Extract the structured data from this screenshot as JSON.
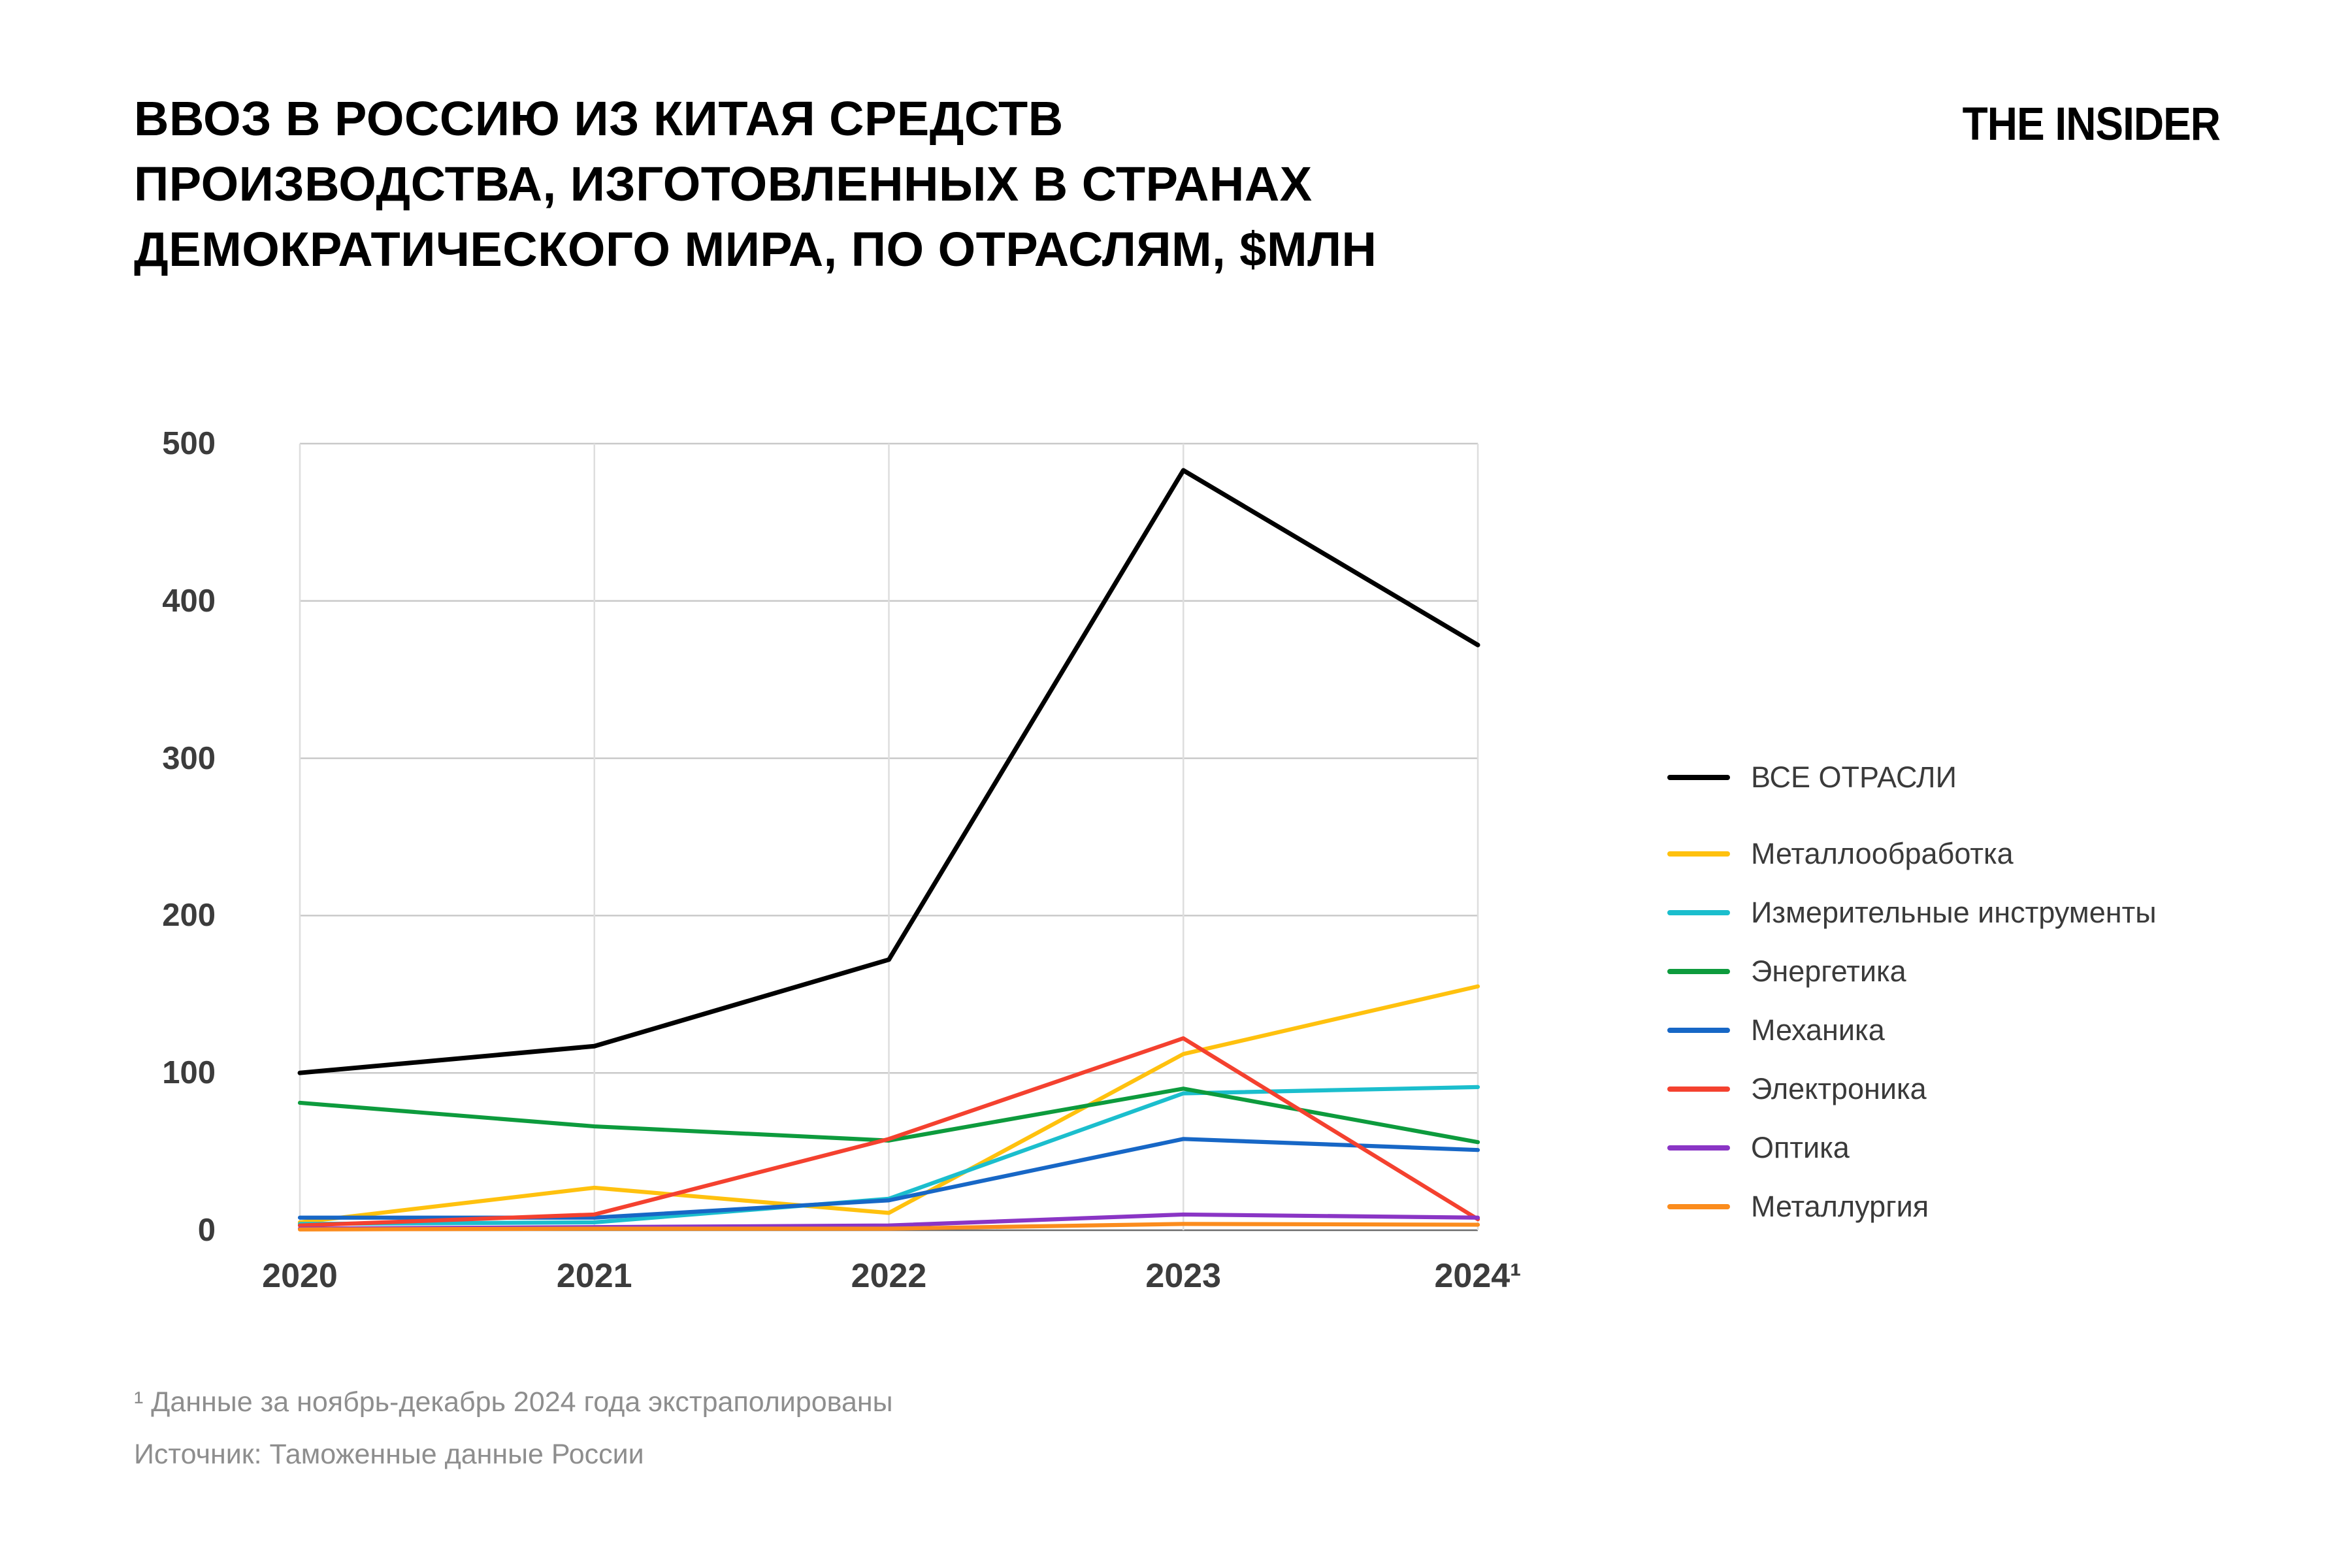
{
  "header": {
    "title_lines": [
      "ВВОЗ В РОССИЮ ИЗ КИТАЯ СРЕДСТВ",
      "ПРОИЗВОДСТВА, ИЗГОТОВЛЕННЫХ В СТРАНАХ",
      "ДЕМОКРАТИЧЕСКОГО МИРА, ПО ОТРАСЛЯМ, $МЛН"
    ],
    "logo": "THE INSIDER"
  },
  "chart_data": {
    "type": "line",
    "x": [
      2020,
      2021,
      2022,
      2023,
      2024
    ],
    "x_tick_labels": [
      "2020",
      "2021",
      "2022",
      "2023",
      "2024¹"
    ],
    "y_ticks": [
      0,
      100,
      200,
      300,
      400,
      500
    ],
    "ylim": [
      0,
      500
    ],
    "grid": true,
    "grid_color": "#c9c9c9",
    "vgrid_color": "#dedede",
    "zero_line_color": "#6b6b6b",
    "tick_label_color": "#3c3c3c",
    "legend_position": "right",
    "series": [
      {
        "name": "ВСЕ ОТРАСЛИ",
        "color": "#000000",
        "values": [
          100,
          117,
          172,
          483,
          372
        ]
      },
      {
        "name": "Металлообработка",
        "color": "#ffc10e",
        "values": [
          5,
          27,
          11,
          112,
          155
        ]
      },
      {
        "name": "Измерительные инструменты",
        "color": "#1bbecd",
        "values": [
          4,
          5,
          20,
          87,
          91
        ]
      },
      {
        "name": "Энергетика",
        "color": "#0d9b3d",
        "values": [
          81,
          66,
          57,
          90,
          56
        ]
      },
      {
        "name": "Механика",
        "color": "#1767c6",
        "values": [
          8,
          8,
          19,
          58,
          51
        ]
      },
      {
        "name": "Электроника",
        "color": "#f4412f",
        "values": [
          3,
          10,
          58,
          122,
          7
        ]
      },
      {
        "name": "Оптика",
        "color": "#8a35c5",
        "values": [
          1,
          2,
          3,
          10,
          8
        ]
      },
      {
        "name": "Металлургия",
        "color": "#fb8c1d",
        "values": [
          0.5,
          1,
          1,
          4,
          3.5
        ]
      }
    ]
  },
  "footnotes": {
    "line1": "¹ Данные за ноябрь-декабрь 2024 года экстраполированы",
    "line2": "Источник: Таможенные данные России"
  }
}
